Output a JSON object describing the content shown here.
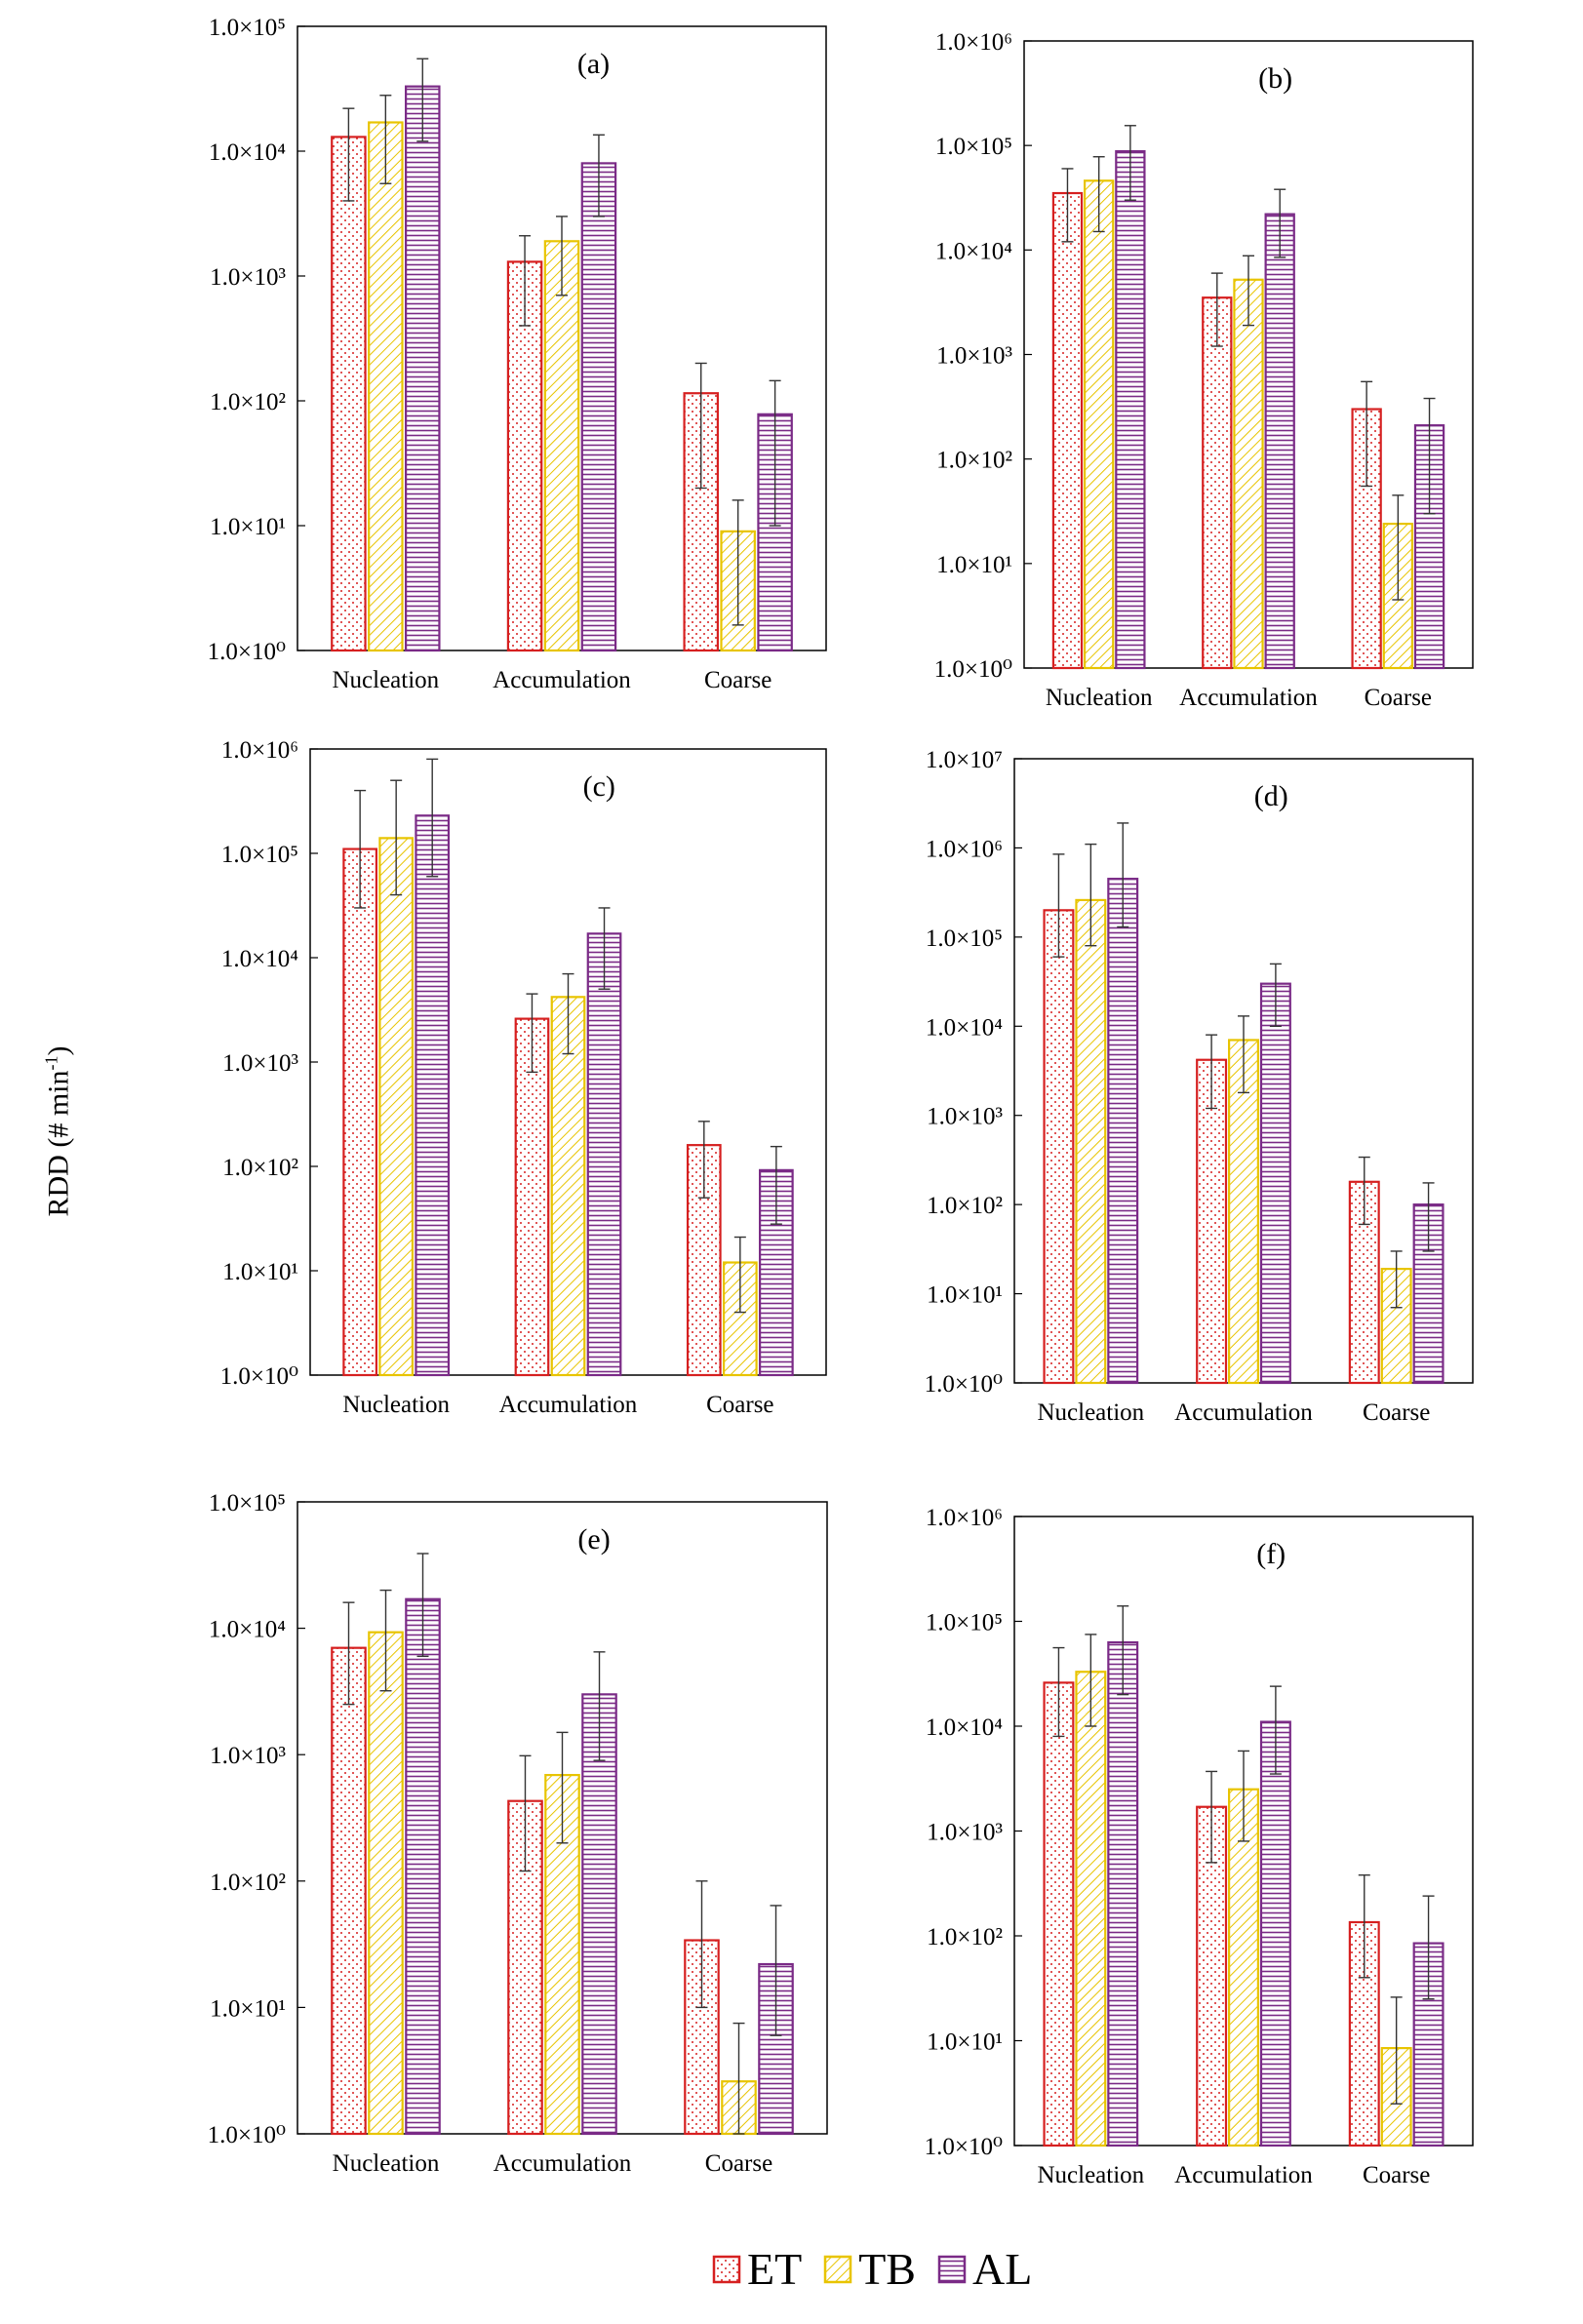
{
  "figure": {
    "y_axis_label": "RDD (# min",
    "y_axis_label_sup": "-1",
    "y_axis_label_end": ")"
  },
  "legend": [
    {
      "name": "ET",
      "color": "#d62020",
      "pattern": "dots"
    },
    {
      "name": "TB",
      "color": "#e8c400",
      "pattern": "diagonal"
    },
    {
      "name": "AL",
      "color": "#7a2a86",
      "pattern": "horizontal"
    }
  ],
  "chart_data": [
    {
      "type": "bar",
      "label": "(a)",
      "scale": "log",
      "categories": [
        "Nucleation",
        "Accumulation",
        "Coarse"
      ],
      "ylim_exp": [
        0,
        5
      ],
      "tick_labels": [
        "1.0×10⁰",
        "1.0×10¹",
        "1.0×10²",
        "1.0×10³",
        "1.0×10⁴",
        "1.0×10⁵"
      ],
      "series": [
        {
          "name": "ET",
          "values": [
            13000,
            1300,
            115
          ],
          "err_low": [
            4000,
            400,
            20
          ],
          "err_high": [
            22000,
            2100,
            200
          ]
        },
        {
          "name": "TB",
          "values": [
            17000,
            1900,
            9
          ],
          "err_low": [
            5500,
            700,
            1.6
          ],
          "err_high": [
            28000,
            3000,
            16
          ]
        },
        {
          "name": "AL",
          "values": [
            33000,
            8000,
            78
          ],
          "err_low": [
            12000,
            3000,
            10
          ],
          "err_high": [
            55000,
            13500,
            145
          ]
        }
      ]
    },
    {
      "type": "bar",
      "label": "(b)",
      "scale": "log",
      "categories": [
        "Nucleation",
        "Accumulation",
        "Coarse"
      ],
      "ylim_exp": [
        0,
        6
      ],
      "tick_labels": [
        "1.0×10⁰",
        "1.0×10¹",
        "1.0×10²",
        "1.0×10³",
        "1.0×10⁴",
        "1.0×10⁵",
        "1.0×10⁶"
      ],
      "series": [
        {
          "name": "ET",
          "values": [
            35000,
            3500,
            300
          ],
          "err_low": [
            12000,
            1200,
            55
          ],
          "err_high": [
            60000,
            6000,
            550
          ]
        },
        {
          "name": "TB",
          "values": [
            46000,
            5200,
            24
          ],
          "err_low": [
            15000,
            1900,
            4.5
          ],
          "err_high": [
            78000,
            8800,
            45
          ]
        },
        {
          "name": "AL",
          "values": [
            88000,
            22000,
            210
          ],
          "err_low": [
            30000,
            8500,
            30
          ],
          "err_high": [
            155000,
            38000,
            380
          ]
        }
      ]
    },
    {
      "type": "bar",
      "label": "(c)",
      "scale": "log",
      "categories": [
        "Nucleation",
        "Accumulation",
        "Coarse"
      ],
      "ylim_exp": [
        0,
        6
      ],
      "tick_labels": [
        "1.0×10⁰",
        "1.0×10¹",
        "1.0×10²",
        "1.0×10³",
        "1.0×10⁴",
        "1.0×10⁵",
        "1.0×10⁶"
      ],
      "series": [
        {
          "name": "ET",
          "values": [
            110000,
            2600,
            160
          ],
          "err_low": [
            30000,
            800,
            50
          ],
          "err_high": [
            400000,
            4500,
            270
          ]
        },
        {
          "name": "TB",
          "values": [
            140000,
            4200,
            12
          ],
          "err_low": [
            40000,
            1200,
            4
          ],
          "err_high": [
            500000,
            7000,
            21
          ]
        },
        {
          "name": "AL",
          "values": [
            230000,
            17000,
            92
          ],
          "err_low": [
            60000,
            5000,
            28
          ],
          "err_high": [
            800000,
            30000,
            155
          ]
        }
      ]
    },
    {
      "type": "bar",
      "label": "(d)",
      "scale": "log",
      "categories": [
        "Nucleation",
        "Accumulation",
        "Coarse"
      ],
      "ylim_exp": [
        0,
        7
      ],
      "tick_labels": [
        "1.0×10⁰",
        "1.0×10¹",
        "1.0×10²",
        "1.0×10³",
        "1.0×10⁴",
        "1.0×10⁵",
        "1.0×10⁶",
        "1.0×10⁷"
      ],
      "series": [
        {
          "name": "ET",
          "values": [
            200000,
            4200,
            180
          ],
          "err_low": [
            60000,
            1200,
            60
          ],
          "err_high": [
            850000,
            8000,
            340
          ]
        },
        {
          "name": "TB",
          "values": [
            260000,
            7000,
            19
          ],
          "err_low": [
            80000,
            1800,
            7
          ],
          "err_high": [
            1100000,
            13000,
            30
          ]
        },
        {
          "name": "AL",
          "values": [
            450000,
            30000,
            100
          ],
          "err_low": [
            130000,
            10000,
            30
          ],
          "err_high": [
            1900000,
            50000,
            175
          ]
        }
      ]
    },
    {
      "type": "bar",
      "label": "(e)",
      "scale": "log",
      "categories": [
        "Nucleation",
        "Accumulation",
        "Coarse"
      ],
      "ylim_exp": [
        0,
        5
      ],
      "tick_labels": [
        "1.0×10⁰",
        "1.0×10¹",
        "1.0×10²",
        "1.0×10³",
        "1.0×10⁴",
        "1.0×10⁵"
      ],
      "series": [
        {
          "name": "ET",
          "values": [
            7000,
            430,
            34
          ],
          "err_low": [
            2500,
            120,
            10
          ],
          "err_high": [
            16000,
            980,
            100
          ]
        },
        {
          "name": "TB",
          "values": [
            9300,
            690,
            2.6
          ],
          "err_low": [
            3200,
            200,
            0.8
          ],
          "err_high": [
            20000,
            1500,
            7.5
          ]
        },
        {
          "name": "AL",
          "values": [
            17000,
            3000,
            22
          ],
          "err_low": [
            6000,
            900,
            6
          ],
          "err_high": [
            39000,
            6500,
            64
          ]
        }
      ]
    },
    {
      "type": "bar",
      "label": "(f)",
      "scale": "log",
      "categories": [
        "Nucleation",
        "Accumulation",
        "Coarse"
      ],
      "ylim_exp": [
        0,
        6
      ],
      "tick_labels": [
        "1.0×10⁰",
        "1.0×10¹",
        "1.0×10²",
        "1.0×10³",
        "1.0×10⁴",
        "1.0×10⁵",
        "1.0×10⁶"
      ],
      "series": [
        {
          "name": "ET",
          "values": [
            26000,
            1700,
            135
          ],
          "err_low": [
            8000,
            500,
            40
          ],
          "err_high": [
            56000,
            3700,
            380
          ]
        },
        {
          "name": "TB",
          "values": [
            33000,
            2500,
            8.5
          ],
          "err_low": [
            10000,
            800,
            2.5
          ],
          "err_high": [
            75000,
            5800,
            26
          ]
        },
        {
          "name": "AL",
          "values": [
            63000,
            11000,
            85
          ],
          "err_low": [
            20000,
            3500,
            25
          ],
          "err_high": [
            140000,
            24000,
            240
          ]
        }
      ]
    }
  ]
}
